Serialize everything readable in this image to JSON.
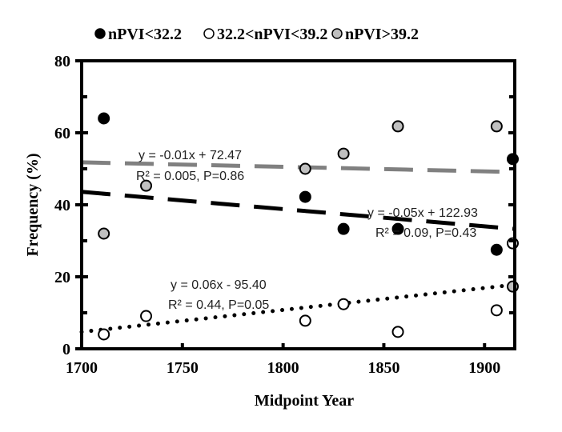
{
  "chart_data": {
    "type": "scatter",
    "title": "",
    "xlabel": "Midpoint Year",
    "ylabel": "Frequency (%)",
    "xlim": [
      1700,
      1915
    ],
    "ylim": [
      0,
      80
    ],
    "xticks": [
      1700,
      1750,
      1800,
      1850,
      1900
    ],
    "yticks": [
      0,
      20,
      40,
      60,
      80
    ],
    "grid": false,
    "legend_position": "top",
    "series": [
      {
        "name": "nPVI<32.2",
        "color": "#000000",
        "fill": "#000000",
        "x": [
          1711,
          1811,
          1830,
          1857,
          1906,
          1914
        ],
        "y": [
          64,
          42.2,
          33.3,
          33.3,
          27.5,
          52.7
        ],
        "trend": {
          "equation": "y = -0.05x + 122.93",
          "stats": "R² = 0.09, P=0.43",
          "style": "dashed",
          "color": "#000000",
          "y_start": 43.6,
          "y_end": 33.3
        }
      },
      {
        "name": "32.2<nPVI<39.2",
        "color": "#000000",
        "fill": "#ffffff",
        "x": [
          1711,
          1732,
          1811,
          1830,
          1857,
          1906,
          1914
        ],
        "y": [
          4,
          9.1,
          7.8,
          12.4,
          4.7,
          10.7,
          29.3
        ],
        "trend": {
          "equation": "y = 0.06x - 95.40",
          "stats": "R² = 0.44, P=0.05",
          "style": "dotted",
          "color": "#000000",
          "y_start": 4.7,
          "y_end": 17.8
        }
      },
      {
        "name": "nPVI>39.2",
        "color": "#000000",
        "fill": "#c0c0c0",
        "x": [
          1711,
          1732,
          1811,
          1830,
          1857,
          1906,
          1914
        ],
        "y": [
          32,
          45.3,
          50,
          54.2,
          61.8,
          61.8,
          17.3
        ],
        "trend": {
          "equation": "y = -0.01x + 72.47",
          "stats": "R² = 0.005, P=0.86",
          "style": "dashed",
          "color": "#808080",
          "y_start": 51.8,
          "y_end": 49.1
        }
      }
    ]
  }
}
